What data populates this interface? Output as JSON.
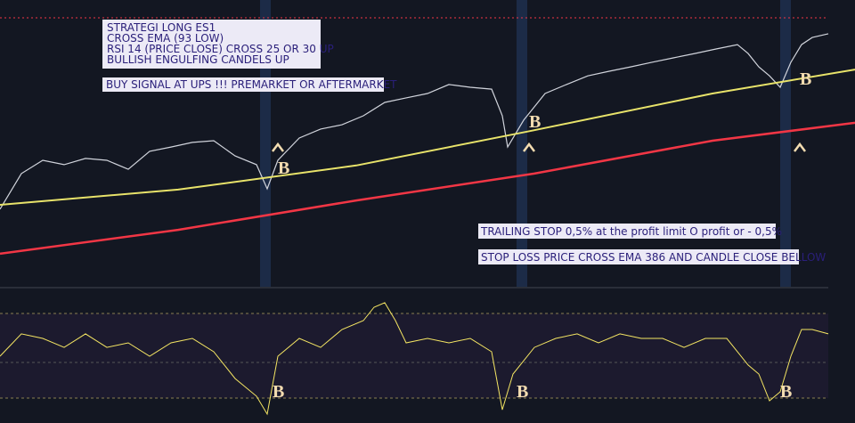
{
  "strategy_box": {
    "lines": [
      "STRATEGI LONG ES1",
      "CROSS EMA (93 LOW)",
      "RSI 14 (PRICE CLOSE) CROSS 25 OR 30 UP",
      "BULLISH ENGULFING CANDELS UP"
    ]
  },
  "buy_note": "BUY  SIGNAL AT UPS !!! PREMARKET OR AFTERMARKET",
  "trailing_note": "TRAILING STOP 0,5% at the profit limit O profit or - 0,5%",
  "stop_note": "STOP LOSS PRICE CROSS EMA 386 AND CANDLE CLOSE BELLOW",
  "signal_letter": "B",
  "chart_data": [
    {
      "type": "line",
      "xlim": [
        0,
        960
      ],
      "ylim": [
        0,
        100
      ],
      "signals_x": [
        312,
        594,
        898
      ],
      "series": [
        {
          "color": "#d1d4dc",
          "x": [
            0,
            24,
            48,
            72,
            96,
            120,
            144,
            168,
            192,
            216,
            240,
            264,
            288,
            300,
            312,
            336,
            360,
            384,
            408,
            432,
            456,
            480,
            504,
            528,
            552,
            564,
            570,
            588,
            612,
            636,
            660,
            684,
            708,
            732,
            756,
            780,
            804,
            828,
            840,
            852,
            864,
            876,
            888,
            900,
            912,
            930
          ],
          "values": [
            27.9,
            41.0,
            45.9,
            44.3,
            46.6,
            45.9,
            42.6,
            49.2,
            50.8,
            52.5,
            53.1,
            47.5,
            44.3,
            35.4,
            45.9,
            54.1,
            57.4,
            59.0,
            62.3,
            67.2,
            68.9,
            70.5,
            73.8,
            72.8,
            72.1,
            62.3,
            50.8,
            60.7,
            70.5,
            73.8,
            77.0,
            78.7,
            80.3,
            82.0,
            83.6,
            85.2,
            86.9,
            88.5,
            85.2,
            80.3,
            77.0,
            72.8,
            82.0,
            88.5,
            91.1,
            92.5
          ]
        },
        {
          "color": "#e8e36a",
          "x": [
            0,
            200,
            400,
            600,
            800,
            960
          ],
          "values": [
            29.5,
            35.1,
            44.0,
            57.0,
            70.5,
            79.3
          ]
        },
        {
          "color": "#f23645",
          "x": [
            0,
            200,
            400,
            600,
            800,
            960
          ],
          "values": [
            11.5,
            20.3,
            31.1,
            41.0,
            53.1,
            59.7
          ]
        }
      ]
    },
    {
      "type": "line",
      "xlim": [
        0,
        960
      ],
      "ylim": [
        0,
        100
      ],
      "signals_x": [
        306,
        580,
        876
      ],
      "series": [
        {
          "color": "#f5e663",
          "x": [
            0,
            24,
            48,
            72,
            96,
            120,
            144,
            168,
            192,
            216,
            240,
            264,
            288,
            300,
            312,
            336,
            360,
            384,
            408,
            420,
            432,
            444,
            456,
            480,
            504,
            528,
            552,
            564,
            576,
            600,
            624,
            648,
            672,
            696,
            720,
            744,
            768,
            792,
            816,
            840,
            852,
            864,
            876,
            888,
            900,
            912,
            930
          ],
          "values": [
            50,
            67.9,
            64.3,
            57.1,
            67.9,
            57.1,
            60.7,
            50,
            60.7,
            64.3,
            53.6,
            32.1,
            17.9,
            3.6,
            50,
            64.3,
            57.1,
            71.4,
            78.6,
            89.3,
            92.9,
            78.6,
            60.7,
            64.3,
            60.7,
            64.3,
            53.6,
            7.1,
            35.7,
            57.1,
            64.3,
            67.9,
            60.7,
            67.9,
            64.3,
            64.3,
            57.1,
            64.3,
            64.3,
            42.9,
            35.7,
            14.3,
            21.4,
            50,
            71.4,
            71.4,
            67.9
          ]
        }
      ]
    }
  ]
}
